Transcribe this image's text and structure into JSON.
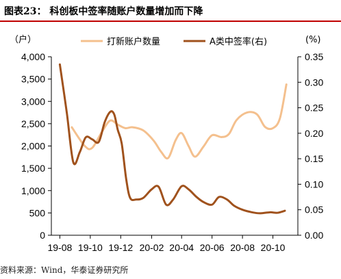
{
  "figure": {
    "title": "图表23：  科创板中签率随账户数量增加而下降",
    "source": "资料来源：Wind，华泰证券研究所"
  },
  "chart_data": {
    "type": "line",
    "left_unit": "（户）",
    "right_unit": "(%)",
    "x_tick_labels": [
      "19-08",
      "19-10",
      "19-12",
      "20-02",
      "20-04",
      "20-06",
      "20-08",
      "20-10"
    ],
    "ylim_left": [
      0,
      4000
    ],
    "yticks_left": [
      "0",
      "500",
      "1,000",
      "1,500",
      "2,000",
      "2,500",
      "3,000",
      "3,500",
      "4,000"
    ],
    "ylim_right": [
      0,
      0.35
    ],
    "yticks_right": [
      "0.00",
      "0.05",
      "0.10",
      "0.15",
      "0.20",
      "0.25",
      "0.30",
      "0.35"
    ],
    "legend_position": "top",
    "grid": false,
    "series": [
      {
        "name": "打新账户数量",
        "axis": "left",
        "color": "#F4C08E",
        "points": [
          [
            "2019-08-25",
            2420
          ],
          [
            "2019-09-20",
            2000
          ],
          [
            "2019-10-05",
            1960
          ],
          [
            "2019-10-25",
            2330
          ],
          [
            "2019-11-10",
            2570
          ],
          [
            "2019-11-25",
            2480
          ],
          [
            "2019-12-10",
            2400
          ],
          [
            "2019-12-25",
            2420
          ],
          [
            "2020-01-15",
            2350
          ],
          [
            "2020-02-05",
            2120
          ],
          [
            "2020-02-20",
            1870
          ],
          [
            "2020-03-05",
            1730
          ],
          [
            "2020-03-20",
            2130
          ],
          [
            "2020-04-01",
            2290
          ],
          [
            "2020-04-15",
            2000
          ],
          [
            "2020-04-28",
            1760
          ],
          [
            "2020-05-15",
            1990
          ],
          [
            "2020-06-01",
            2240
          ],
          [
            "2020-06-20",
            2200
          ],
          [
            "2020-07-05",
            2270
          ],
          [
            "2020-07-20",
            2580
          ],
          [
            "2020-08-10",
            2750
          ],
          [
            "2020-08-30",
            2710
          ],
          [
            "2020-09-15",
            2430
          ],
          [
            "2020-10-01",
            2400
          ],
          [
            "2020-10-15",
            2620
          ],
          [
            "2020-10-28",
            3380
          ]
        ]
      },
      {
        "name": "A类中签率(右)",
        "axis": "right",
        "color": "#A0521D",
        "points": [
          [
            "2019-08-01",
            0.335
          ],
          [
            "2019-08-15",
            0.24
          ],
          [
            "2019-08-28",
            0.143
          ],
          [
            "2019-09-10",
            0.163
          ],
          [
            "2019-09-22",
            0.192
          ],
          [
            "2019-10-05",
            0.188
          ],
          [
            "2019-10-18",
            0.183
          ],
          [
            "2019-10-30",
            0.222
          ],
          [
            "2019-11-10",
            0.242
          ],
          [
            "2019-11-18",
            0.237
          ],
          [
            "2019-11-25",
            0.207
          ],
          [
            "2019-12-03",
            0.18
          ],
          [
            "2019-12-12",
            0.11
          ],
          [
            "2019-12-20",
            0.073
          ],
          [
            "2020-01-01",
            0.07
          ],
          [
            "2020-01-15",
            0.073
          ],
          [
            "2020-02-01",
            0.09
          ],
          [
            "2020-02-15",
            0.095
          ],
          [
            "2020-03-01",
            0.06
          ],
          [
            "2020-03-15",
            0.07
          ],
          [
            "2020-04-01",
            0.096
          ],
          [
            "2020-04-15",
            0.09
          ],
          [
            "2020-05-01",
            0.075
          ],
          [
            "2020-05-15",
            0.065
          ],
          [
            "2020-06-01",
            0.06
          ],
          [
            "2020-06-15",
            0.075
          ],
          [
            "2020-07-01",
            0.07
          ],
          [
            "2020-07-15",
            0.058
          ],
          [
            "2020-08-01",
            0.05
          ],
          [
            "2020-08-20",
            0.045
          ],
          [
            "2020-09-05",
            0.043
          ],
          [
            "2020-09-25",
            0.045
          ],
          [
            "2020-10-10",
            0.044
          ],
          [
            "2020-10-25",
            0.048
          ]
        ]
      }
    ]
  }
}
